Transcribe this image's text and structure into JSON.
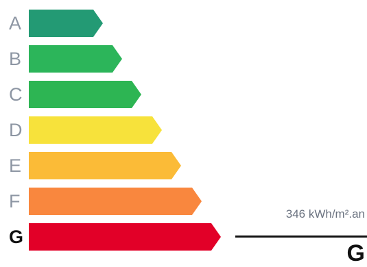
{
  "ratings": [
    {
      "letter": "A",
      "color": "#239a74",
      "active": false
    },
    {
      "letter": "B",
      "color": "#2cb55a",
      "active": false
    },
    {
      "letter": "C",
      "color": "#2db553",
      "active": false
    },
    {
      "letter": "D",
      "color": "#f7e23b",
      "active": false
    },
    {
      "letter": "E",
      "color": "#fbbb37",
      "active": false
    },
    {
      "letter": "F",
      "color": "#f9873e",
      "active": false
    },
    {
      "letter": "G",
      "color": "#e20028",
      "active": true
    }
  ],
  "result": {
    "value_label": "346 kWh/m².an",
    "letter": "G"
  }
}
